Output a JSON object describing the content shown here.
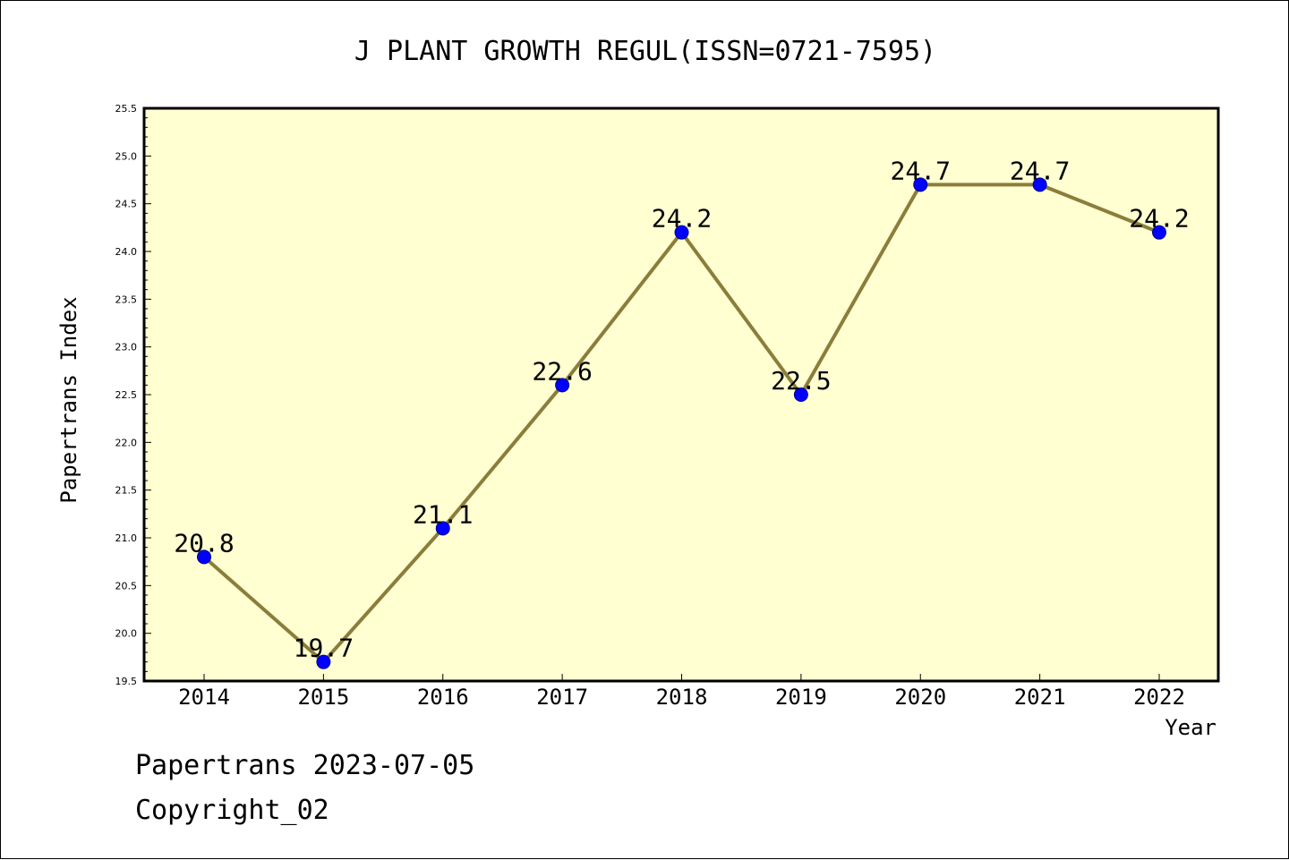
{
  "chart_data": {
    "type": "line",
    "title": "J PLANT GROWTH REGUL(ISSN=0721-7595)",
    "xlabel": "Year",
    "ylabel": "Papertrans Index",
    "categories": [
      "2014",
      "2015",
      "2016",
      "2017",
      "2018",
      "2019",
      "2020",
      "2021",
      "2022"
    ],
    "series": [
      {
        "values": [
          20.8,
          19.7,
          21.1,
          22.6,
          24.2,
          22.5,
          24.7,
          24.7,
          24.2
        ],
        "data_labels": [
          "20.8",
          "19.7",
          "21.1",
          "22.6",
          "24.2",
          "22.5",
          "24.7",
          "24.7",
          "24.2"
        ],
        "line_color": "#8b7d3a",
        "marker_color": "#0000ff"
      }
    ],
    "ylim": [
      19.5,
      25.5
    ],
    "yticks": [
      "19.5",
      "20.0",
      "20.5",
      "21.0",
      "21.5",
      "22.0",
      "22.5",
      "23.0",
      "23.5",
      "24.0",
      "24.5",
      "25.0",
      "25.5"
    ],
    "plot_background": "#ffffd2",
    "grid": false,
    "legend": "none"
  },
  "footer": {
    "line1": "Papertrans 2023-07-05",
    "line2": "Copyright_02"
  }
}
